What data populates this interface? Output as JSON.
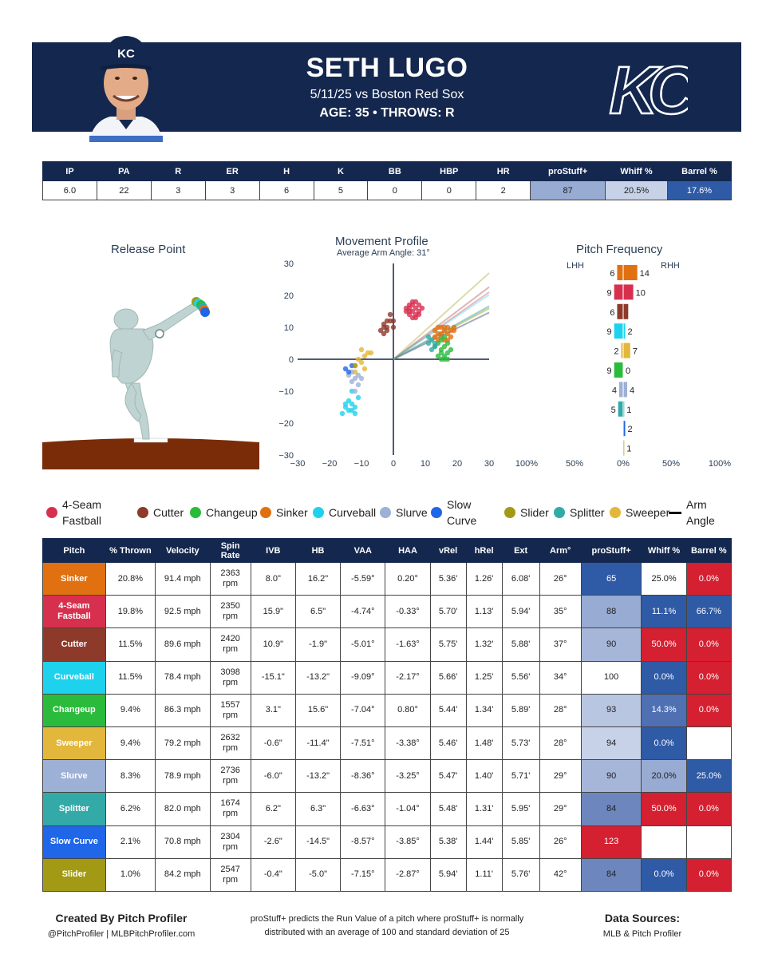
{
  "header": {
    "name": "SETH LUGO",
    "game": "5/11/25 vs Boston Red Sox",
    "age_throws": "AGE: 35 • THROWS: R",
    "cap_letters": "KC",
    "logo_letters": "KC"
  },
  "colors": {
    "navy": "#14274e",
    "mound": "#7a2c08",
    "blue_strong": "#2f5aa6",
    "blue_mid": "#6d87be",
    "blue_light": "#a6b6d8",
    "blue_pale": "#c7d2e8",
    "red": "#d42030"
  },
  "summary": {
    "headers": [
      "IP",
      "PA",
      "R",
      "ER",
      "H",
      "K",
      "BB",
      "HBP",
      "HR",
      "proStuff+",
      "Whiff %",
      "Barrel %"
    ],
    "values": [
      "6.0",
      "22",
      "3",
      "3",
      "6",
      "5",
      "0",
      "0",
      "2",
      "87",
      "20.5%",
      "17.6%"
    ],
    "cell_colors": [
      "#ffffff",
      "#ffffff",
      "#ffffff",
      "#ffffff",
      "#ffffff",
      "#ffffff",
      "#ffffff",
      "#ffffff",
      "#ffffff",
      "#97abd3",
      "#c7d2e8",
      "#2f5aa6"
    ],
    "text_colors": [
      "#222",
      "#222",
      "#222",
      "#222",
      "#222",
      "#222",
      "#222",
      "#222",
      "#222",
      "#222",
      "#222",
      "#ffffff"
    ]
  },
  "charts": {
    "release_title": "Release Point",
    "movement_title": "Movement Profile",
    "movement_sub": "Average Arm Angle: 31°",
    "frequency_title": "Pitch Frequency",
    "lhh": "LHH",
    "rhh": "RHH"
  },
  "chart_data": [
    {
      "type": "scatter",
      "title": "Movement Profile",
      "subtitle": "Average Arm Angle: 31°",
      "xlim": [
        -30,
        30
      ],
      "ylim": [
        -30,
        30
      ],
      "xticks": [
        "−30",
        "−20",
        "−10",
        "0",
        "10",
        "20",
        "30"
      ],
      "yticks": [
        "30",
        "20",
        "10",
        "0",
        "−10",
        "−20",
        "−30"
      ],
      "arm_angle_lines_deg": [
        26,
        35,
        37,
        34,
        28,
        28,
        29,
        29,
        26,
        42
      ],
      "series": [
        {
          "name": "4-Seam Fastball",
          "color": "#d7304f",
          "points": [
            [
              4,
              15
            ],
            [
              5,
              16
            ],
            [
              6,
              17
            ],
            [
              7,
              18
            ],
            [
              5,
              14
            ],
            [
              6,
              15
            ],
            [
              7,
              16
            ],
            [
              8,
              15
            ],
            [
              6,
              13
            ],
            [
              7,
              14
            ],
            [
              5,
              17
            ],
            [
              8,
              17
            ],
            [
              4,
              16
            ],
            [
              6,
              18
            ],
            [
              7,
              13
            ],
            [
              9,
              16
            ],
            [
              5,
              15
            ],
            [
              8,
              14
            ]
          ]
        },
        {
          "name": "Sinker",
          "color": "#e07010",
          "points": [
            [
              13,
              9
            ],
            [
              14,
              10
            ],
            [
              15,
              8
            ],
            [
              16,
              9
            ],
            [
              17,
              10
            ],
            [
              15,
              7
            ],
            [
              18,
              9
            ],
            [
              14,
              8
            ],
            [
              16,
              6
            ],
            [
              17,
              8
            ],
            [
              13,
              7
            ],
            [
              19,
              9
            ],
            [
              16,
              10
            ],
            [
              15,
              10
            ],
            [
              18,
              7
            ],
            [
              14,
              6
            ],
            [
              17,
              6
            ],
            [
              19,
              10
            ]
          ]
        },
        {
          "name": "Cutter",
          "color": "#8e3a2a",
          "points": [
            [
              -3,
              8
            ],
            [
              -2,
              10
            ],
            [
              -1,
              12
            ],
            [
              -3,
              11
            ],
            [
              -2,
              9
            ],
            [
              0,
              10
            ],
            [
              -4,
              9
            ],
            [
              -1,
              14
            ],
            [
              -2,
              12
            ],
            [
              -3,
              10
            ],
            [
              0,
              12
            ]
          ]
        },
        {
          "name": "Curveball",
          "color": "#1ed2ee",
          "points": [
            [
              -15,
              -15
            ],
            [
              -14,
              -16
            ],
            [
              -13,
              -14
            ],
            [
              -12,
              -15
            ],
            [
              -16,
              -17
            ],
            [
              -13,
              -16
            ],
            [
              -11,
              -12
            ],
            [
              -14,
              -13
            ],
            [
              -12,
              -17
            ],
            [
              -15,
              -14
            ],
            [
              -13,
              -10
            ]
          ]
        },
        {
          "name": "Changeup",
          "color": "#2bbb3c",
          "points": [
            [
              15,
              3
            ],
            [
              16,
              4
            ],
            [
              17,
              2
            ],
            [
              14,
              5
            ],
            [
              16,
              1
            ],
            [
              18,
              3
            ],
            [
              15,
              6
            ],
            [
              17,
              0
            ],
            [
              16,
              0
            ],
            [
              15,
              2
            ],
            [
              13,
              4
            ],
            [
              14,
              1
            ],
            [
              16,
              7
            ],
            [
              15,
              0
            ],
            [
              17,
              5
            ]
          ]
        },
        {
          "name": "Sweeper",
          "color": "#e3b73b",
          "points": [
            [
              -12,
              -2
            ],
            [
              -11,
              0
            ],
            [
              -9,
              1
            ],
            [
              -10,
              3
            ],
            [
              -8,
              2
            ],
            [
              -12,
              -4
            ],
            [
              -7,
              2
            ],
            [
              -10,
              -1
            ],
            [
              -9,
              -3
            ]
          ]
        },
        {
          "name": "Slurve",
          "color": "#9db0d5",
          "points": [
            [
              -13,
              -4
            ],
            [
              -12,
              -6
            ],
            [
              -11,
              -8
            ],
            [
              -14,
              -5
            ],
            [
              -12,
              -10
            ],
            [
              -10,
              -6
            ],
            [
              -13,
              -7
            ],
            [
              -11,
              -5
            ]
          ]
        },
        {
          "name": "Splitter",
          "color": "#33aaa8",
          "points": [
            [
              11,
              5
            ],
            [
              12,
              6
            ],
            [
              13,
              4
            ],
            [
              12,
              3
            ],
            [
              11,
              7
            ],
            [
              13,
              5
            ]
          ]
        },
        {
          "name": "Slow Curve",
          "color": "#1f66e8",
          "points": [
            [
              -15,
              -3
            ],
            [
              -14,
              -4
            ],
            [
              -13,
              -2
            ]
          ]
        },
        {
          "name": "Slider",
          "color": "#a29a14",
          "points": [
            [
              -12,
              -2
            ]
          ]
        }
      ]
    },
    {
      "type": "bar",
      "title": "Pitch Frequency",
      "orientation": "horizontal-diverging",
      "xticks": [
        "100%",
        "50%",
        "0%",
        "50%",
        "100%"
      ],
      "categories": [
        "Sinker",
        "4-Seam Fastball",
        "Cutter",
        "Curveball",
        "Sweeper",
        "Changeup",
        "Slurve",
        "Splitter",
        "Slow Curve",
        "Slider"
      ],
      "colors": [
        "#e07010",
        "#d7304f",
        "#8e3a2a",
        "#1ed2ee",
        "#e3b73b",
        "#2bbb3c",
        "#9db0d5",
        "#33aaa8",
        "#1f66e8",
        "#a29a14"
      ],
      "series": [
        {
          "name": "LHH",
          "values": [
            6,
            9,
            6,
            9,
            2,
            9,
            4,
            5,
            0,
            0
          ],
          "labels": [
            "6",
            "9",
            "6",
            "9",
            "2",
            "9",
            "4",
            "5",
            "",
            ""
          ]
        },
        {
          "name": "RHH",
          "values": [
            14,
            10,
            5,
            2,
            7,
            0,
            4,
            1,
            2,
            1
          ],
          "labels": [
            "14",
            "10",
            "",
            "2",
            "7",
            "0",
            "4",
            "1",
            "2",
            "1"
          ]
        }
      ]
    }
  ],
  "legend": [
    {
      "label": "4-Seam Fastball",
      "color": "#d7304f"
    },
    {
      "label": "Cutter",
      "color": "#8e3a2a"
    },
    {
      "label": "Changeup",
      "color": "#2bbb3c"
    },
    {
      "label": "Sinker",
      "color": "#e07010"
    },
    {
      "label": "Curveball",
      "color": "#1ed2ee"
    },
    {
      "label": "Slurve",
      "color": "#9db0d5"
    },
    {
      "label": "Slow Curve",
      "color": "#1f66e8"
    },
    {
      "label": "Slider",
      "color": "#a29a14"
    },
    {
      "label": "Splitter",
      "color": "#33aaa8"
    },
    {
      "label": "Sweeper",
      "color": "#e3b73b"
    },
    {
      "label": "Arm Angle",
      "color": "#000000"
    }
  ],
  "pitch_table": {
    "headers": [
      "Pitch",
      "% Thrown",
      "Velocity",
      "Spin Rate",
      "IVB",
      "HB",
      "VAA",
      "HAA",
      "vRel",
      "hRel",
      "Ext",
      "Arm°",
      "proStuff+",
      "Whiff %",
      "Barrel %"
    ],
    "rows": [
      {
        "pitch": "Sinker",
        "color": "#e07010",
        "cells": [
          "20.8%",
          "91.4 mph",
          "2363 rpm",
          "8.0\"",
          "16.2\"",
          "-5.59°",
          "0.20°",
          "5.36'",
          "1.26'",
          "6.08'",
          "26°"
        ],
        "stuff": "65",
        "stuff_bg": "#2f5aa6",
        "stuff_fg": "#ffffff",
        "whiff": "25.0%",
        "whiff_bg": "#ffffff",
        "whiff_fg": "#222",
        "barrel": "0.0%",
        "barrel_bg": "#d42030",
        "barrel_fg": "#ffffff"
      },
      {
        "pitch": "4-Seam Fastball",
        "color": "#d7304f",
        "cells": [
          "19.8%",
          "92.5 mph",
          "2350 rpm",
          "15.9\"",
          "6.5\"",
          "-4.74°",
          "-0.33°",
          "5.70'",
          "1.13'",
          "5.94'",
          "35°"
        ],
        "stuff": "88",
        "stuff_bg": "#97abd3",
        "stuff_fg": "#222",
        "whiff": "11.1%",
        "whiff_bg": "#2f5aa6",
        "whiff_fg": "#ffffff",
        "barrel": "66.7%",
        "barrel_bg": "#2f5aa6",
        "barrel_fg": "#ffffff"
      },
      {
        "pitch": "Cutter",
        "color": "#8e3a2a",
        "cells": [
          "11.5%",
          "89.6 mph",
          "2420 rpm",
          "10.9\"",
          "-1.9\"",
          "-5.01°",
          "-1.63°",
          "5.75'",
          "1.32'",
          "5.88'",
          "37°"
        ],
        "stuff": "90",
        "stuff_bg": "#a6b6d8",
        "stuff_fg": "#222",
        "whiff": "50.0%",
        "whiff_bg": "#d42030",
        "whiff_fg": "#ffffff",
        "barrel": "0.0%",
        "barrel_bg": "#d42030",
        "barrel_fg": "#ffffff"
      },
      {
        "pitch": "Curveball",
        "color": "#1ed2ee",
        "cells": [
          "11.5%",
          "78.4 mph",
          "3098 rpm",
          "-15.1\"",
          "-13.2\"",
          "-9.09°",
          "-2.17°",
          "5.66'",
          "1.25'",
          "5.56'",
          "34°"
        ],
        "stuff": "100",
        "stuff_bg": "#ffffff",
        "stuff_fg": "#222",
        "whiff": "0.0%",
        "whiff_bg": "#2f5aa6",
        "whiff_fg": "#ffffff",
        "barrel": "0.0%",
        "barrel_bg": "#d42030",
        "barrel_fg": "#ffffff"
      },
      {
        "pitch": "Changeup",
        "color": "#2bbb3c",
        "cells": [
          "9.4%",
          "86.3 mph",
          "1557 rpm",
          "3.1\"",
          "15.6\"",
          "-7.04°",
          "0.80°",
          "5.44'",
          "1.34'",
          "5.89'",
          "28°"
        ],
        "stuff": "93",
        "stuff_bg": "#b9c6e1",
        "stuff_fg": "#222",
        "whiff": "14.3%",
        "whiff_bg": "#4f70b3",
        "whiff_fg": "#ffffff",
        "barrel": "0.0%",
        "barrel_bg": "#d42030",
        "barrel_fg": "#ffffff"
      },
      {
        "pitch": "Sweeper",
        "color": "#e3b73b",
        "cells": [
          "9.4%",
          "79.2 mph",
          "2632 rpm",
          "-0.6\"",
          "-11.4\"",
          "-7.51°",
          "-3.38°",
          "5.46'",
          "1.48'",
          "5.73'",
          "28°"
        ],
        "stuff": "94",
        "stuff_bg": "#c7d2e8",
        "stuff_fg": "#222",
        "whiff": "0.0%",
        "whiff_bg": "#2f5aa6",
        "whiff_fg": "#ffffff",
        "barrel": "",
        "barrel_bg": "#ffffff",
        "barrel_fg": "#222"
      },
      {
        "pitch": "Slurve",
        "color": "#9db0d5",
        "cells": [
          "8.3%",
          "78.9 mph",
          "2736 rpm",
          "-6.0\"",
          "-13.2\"",
          "-8.36°",
          "-3.25°",
          "5.47'",
          "1.40'",
          "5.71'",
          "29°"
        ],
        "stuff": "90",
        "stuff_bg": "#a6b6d8",
        "stuff_fg": "#222",
        "whiff": "20.0%",
        "whiff_bg": "#97abd3",
        "whiff_fg": "#222",
        "barrel": "25.0%",
        "barrel_bg": "#2f5aa6",
        "barrel_fg": "#ffffff"
      },
      {
        "pitch": "Splitter",
        "color": "#33aaa8",
        "cells": [
          "6.2%",
          "82.0 mph",
          "1674 rpm",
          "6.2\"",
          "6.3\"",
          "-6.63°",
          "-1.04°",
          "5.48'",
          "1.31'",
          "5.95'",
          "29°"
        ],
        "stuff": "84",
        "stuff_bg": "#6d87be",
        "stuff_fg": "#222",
        "whiff": "50.0%",
        "whiff_bg": "#d42030",
        "whiff_fg": "#ffffff",
        "barrel": "0.0%",
        "barrel_bg": "#d42030",
        "barrel_fg": "#ffffff"
      },
      {
        "pitch": "Slow Curve",
        "color": "#1f66e8",
        "cells": [
          "2.1%",
          "70.8 mph",
          "2304 rpm",
          "-2.6\"",
          "-14.5\"",
          "-8.57°",
          "-3.85°",
          "5.38'",
          "1.44'",
          "5.85'",
          "26°"
        ],
        "stuff": "123",
        "stuff_bg": "#d42030",
        "stuff_fg": "#ffffff",
        "whiff": "",
        "whiff_bg": "#ffffff",
        "whiff_fg": "#222",
        "barrel": "",
        "barrel_bg": "#ffffff",
        "barrel_fg": "#222"
      },
      {
        "pitch": "Slider",
        "color": "#a29a14",
        "cells": [
          "1.0%",
          "84.2 mph",
          "2547 rpm",
          "-0.4\"",
          "-5.0\"",
          "-7.15°",
          "-2.87°",
          "5.94'",
          "1.11'",
          "5.76'",
          "42°"
        ],
        "stuff": "84",
        "stuff_bg": "#6d87be",
        "stuff_fg": "#222",
        "whiff": "0.0%",
        "whiff_bg": "#2f5aa6",
        "whiff_fg": "#ffffff",
        "barrel": "0.0%",
        "barrel_bg": "#d42030",
        "barrel_fg": "#ffffff"
      }
    ]
  },
  "footer": {
    "created_by": "Created By Pitch Profiler",
    "handle": "@PitchProfiler | MLBPitchProfiler.com",
    "note": "proStuff+ predicts the Run Value of a pitch where proStuff+ is normally distributed with an average of 100 and standard deviation of 25",
    "sources_title": "Data Sources:",
    "sources": "MLB & Pitch Profiler"
  }
}
